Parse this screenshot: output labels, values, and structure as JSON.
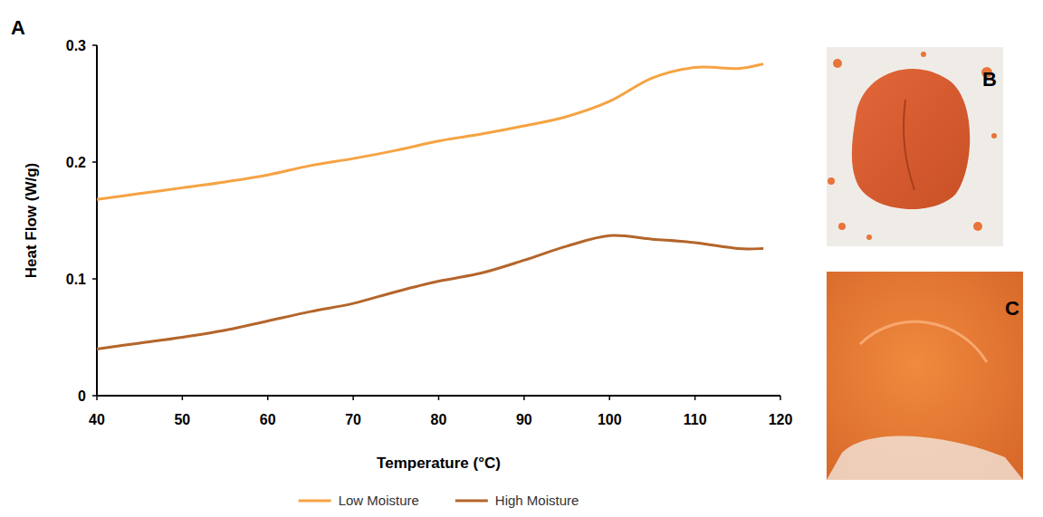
{
  "chart_data": {
    "type": "line",
    "x_label": "Temperature (°C)",
    "y_label": "Heat Flow (W/g)",
    "annotations": [
      "A",
      "B",
      "C"
    ],
    "x": [
      40,
      45,
      50,
      55,
      60,
      65,
      70,
      75,
      80,
      85,
      90,
      95,
      100,
      105,
      110,
      115,
      118
    ],
    "series": [
      {
        "name": "Low Moisture",
        "color": "#f5a343",
        "values": [
          0.168,
          0.173,
          0.178,
          0.183,
          0.189,
          0.197,
          0.203,
          0.21,
          0.218,
          0.224,
          0.231,
          0.239,
          0.252,
          0.272,
          0.281,
          0.28,
          0.284
        ]
      },
      {
        "name": "High Moisture",
        "color": "#b4652a",
        "values": [
          0.04,
          0.045,
          0.05,
          0.056,
          0.064,
          0.072,
          0.079,
          0.089,
          0.098,
          0.105,
          0.116,
          0.128,
          0.137,
          0.134,
          0.131,
          0.126,
          0.126
        ]
      }
    ],
    "xlim": [
      40,
      120
    ],
    "xticks": [
      40,
      50,
      60,
      70,
      80,
      90,
      100,
      110,
      120
    ],
    "ylim": [
      0,
      0.3
    ],
    "yticks": [
      0,
      0.1,
      0.2,
      0.3
    ],
    "grid": false,
    "legend": "bottom"
  }
}
